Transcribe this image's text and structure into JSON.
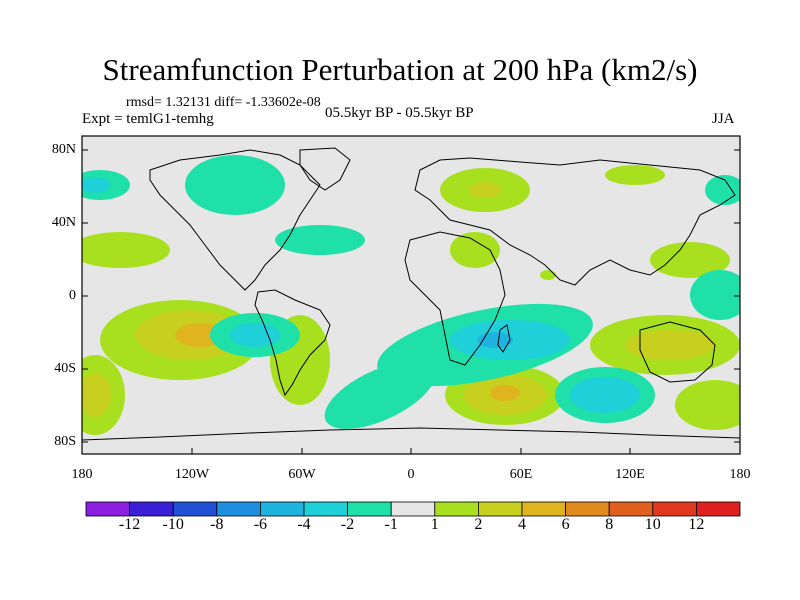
{
  "title": "Streamfunction Perturbation at 200 hPa (km2/s)",
  "stats": "rmsd= 1.32131 diff= -1.33602e-08",
  "expt": "Expt = temlG1-temhg",
  "period": "05.5kyr BP - 05.5kyr BP",
  "season": "JJA",
  "lat_labels": [
    "80N",
    "40N",
    "0",
    "40S",
    "80S"
  ],
  "lon_labels": [
    "180",
    "120W",
    "60W",
    "0",
    "60E",
    "120E",
    "180"
  ],
  "colorbar": {
    "labels": [
      "-12",
      "-10",
      "-8",
      "-6",
      "-4",
      "-2",
      "-1",
      "1",
      "2",
      "4",
      "6",
      "8",
      "10",
      "12"
    ],
    "colors": [
      "#8a1fe0",
      "#3a1fd6",
      "#1f50d6",
      "#1f8fe0",
      "#1fb4e0",
      "#1fd0d8",
      "#1fe0a8",
      "#e6e6e6",
      "#a8e01f",
      "#c8d01f",
      "#e0b41f",
      "#e08a1f",
      "#e0601f",
      "#e0381f",
      "#e01f1f"
    ]
  },
  "colors": {
    "background": "#e6e6e6"
  }
}
